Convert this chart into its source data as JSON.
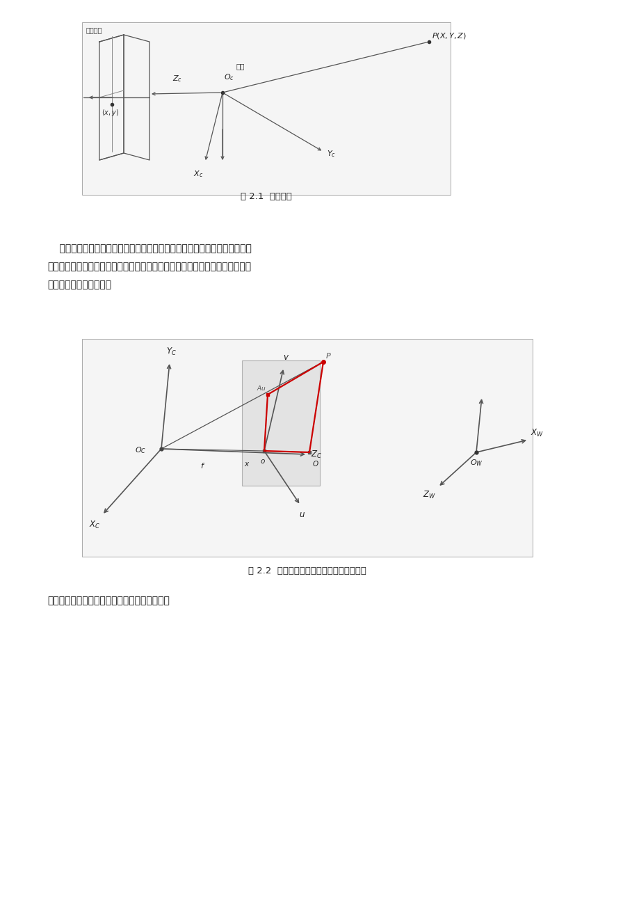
{
  "page_bg": "#ffffff",
  "fig_width": 9.2,
  "fig_height": 13.02,
  "fig1_caption": "图 2.1  针孔成像",
  "fig2_caption": "图 2.2  世界坐标系与摄像机坐标系空间关系",
  "para_line1": "    在实际摄像机的使用过程中，为方便计算人们常常设置多个坐标系，因此空",
  "para_line2": "间点的成像过程必然涉及到许多坐标系之间的相互转化，下面主要阐述几个重要",
  "para_line3": "坐标系之间的转换关系。",
  "bottom_text": "世界坐标系与摄像机坐标系之间的转换关系为："
}
